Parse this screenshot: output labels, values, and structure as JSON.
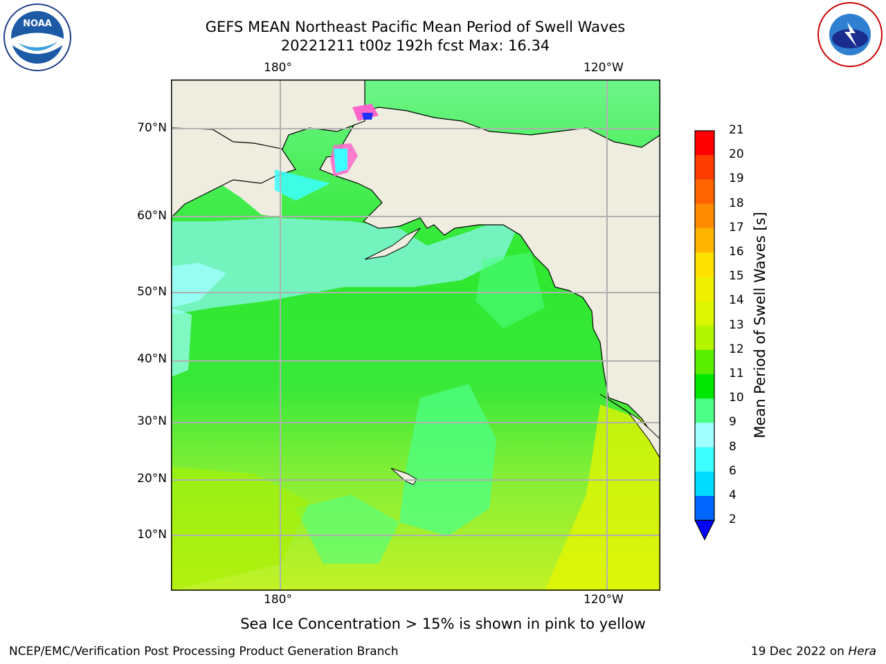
{
  "title_line1": "GEFS MEAN Northeast Pacific Mean Period of Swell Waves",
  "title_line2": "20221211 t00z 192h fcst   Max: 16.34",
  "lon_labels_top": [
    "180°",
    "120°W"
  ],
  "lon_labels_bottom": [
    "180°",
    "120°W"
  ],
  "lat_labels": [
    "70°N",
    "60°N",
    "50°N",
    "40°N",
    "30°N",
    "20°N",
    "10°N"
  ],
  "colorbar": {
    "label": "Mean Period of Swell Waves [s]",
    "ticks": [
      "2",
      "4",
      "6",
      "8",
      "9",
      "10",
      "11",
      "12",
      "13",
      "14",
      "15",
      "16",
      "17",
      "18",
      "19",
      "20",
      "21"
    ],
    "colors": [
      "#0000ff",
      "#0066ff",
      "#00dcff",
      "#3cffff",
      "#a0ffff",
      "#4cff86",
      "#00e600",
      "#5af000",
      "#b4f500",
      "#dcf500",
      "#f0f000",
      "#ffe100",
      "#ffb400",
      "#ff8c00",
      "#ff6400",
      "#ff3c00",
      "#ff0000"
    ]
  },
  "ice_note": "Sea Ice Concentration > 15% is shown in pink to yellow",
  "footer_left": "NCEP/EMC/Verification Post Processing Product Generation Branch",
  "footer_right_prefix": "19 Dec 2022 on ",
  "footer_right_machine": "Hera",
  "logos": {
    "left": "noaa-logo",
    "right": "nws-logo"
  },
  "colors": {
    "land": "#eeeddf",
    "grid": "#b0b0b0"
  }
}
